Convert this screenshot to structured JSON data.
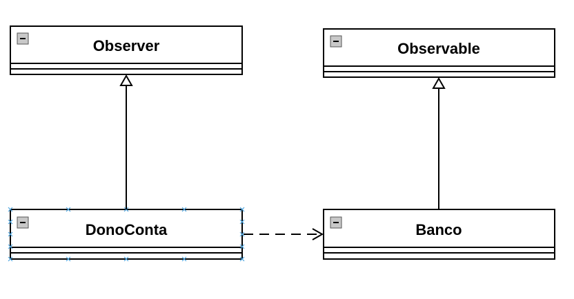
{
  "diagram": {
    "classes": {
      "observer": {
        "name": "Observer"
      },
      "observable": {
        "name": "Observable"
      },
      "dono_conta": {
        "name": "DonoConta"
      },
      "banco": {
        "name": "Banco"
      }
    },
    "relations": [
      {
        "type": "generalization",
        "from": "DonoConta",
        "to": "Observer"
      },
      {
        "type": "generalization",
        "from": "Banco",
        "to": "Observable"
      },
      {
        "type": "dependency",
        "from": "DonoConta",
        "to": "Banco"
      }
    ],
    "selected_class": "DonoConta",
    "colors": {
      "line": "#000000",
      "collapse_icon_fill": "#c8c8c8",
      "selection_handle": "#4aa3df"
    },
    "icons": {
      "collapse": "collapse-minus-icon"
    }
  }
}
